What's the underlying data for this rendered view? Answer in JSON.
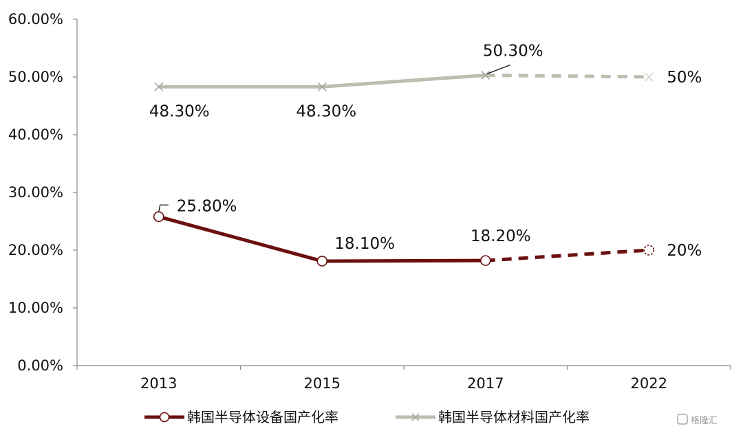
{
  "chart_data": {
    "type": "line",
    "categories": [
      "2013",
      "2015",
      "2017",
      "2022"
    ],
    "ylim": [
      0,
      60
    ],
    "yticks": [
      "0.00%",
      "10.00%",
      "20.00%",
      "30.00%",
      "40.00%",
      "50.00%",
      "60.00%"
    ],
    "series": [
      {
        "name": "韩国半导体设备国产化率",
        "values": [
          25.8,
          18.1,
          18.2,
          20
        ],
        "labels": [
          "25.80%",
          "18.10%",
          "18.20%",
          "20%"
        ],
        "color": "#6b0f0f",
        "marker": "circle",
        "projected_from_index": 2
      },
      {
        "name": "韩国半导体材料国产化率",
        "values": [
          48.3,
          48.3,
          50.3,
          50
        ],
        "labels": [
          "48.30%",
          "48.30%",
          "50.30%",
          "50%"
        ],
        "color": "#bdbdb0",
        "marker": "x",
        "projected_from_index": 2
      }
    ],
    "legend_position": "bottom",
    "grid": false
  },
  "watermark": {
    "text": "格隆汇"
  }
}
